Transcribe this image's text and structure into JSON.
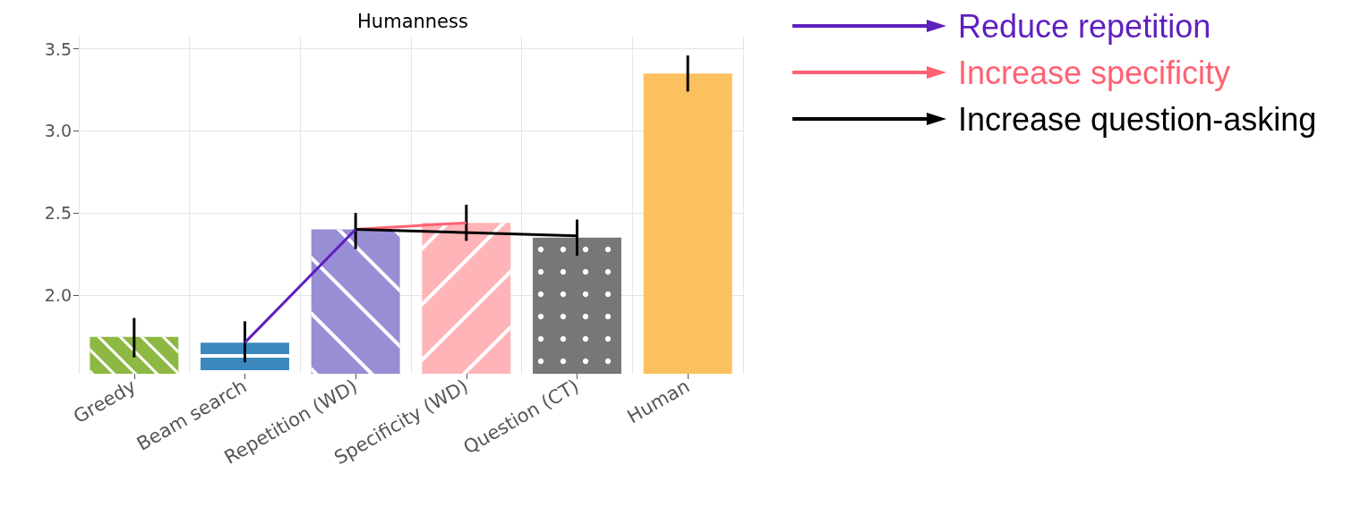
{
  "chart_data": {
    "type": "bar",
    "title": "Humanness",
    "categories": [
      "Greedy",
      "Beam search",
      "Repetition (WD)",
      "Specificity (WD)",
      "Question (CT)",
      "Human"
    ],
    "values": [
      1.745,
      1.71,
      2.4,
      2.44,
      2.35,
      3.35
    ],
    "colors": [
      "#8db843",
      "#3a88be",
      "#988ed5",
      "#ffb4b8",
      "#777777",
      "#fbc15e"
    ],
    "errors": [
      [
        1.62,
        1.86
      ],
      [
        1.59,
        1.84
      ],
      [
        2.28,
        2.5
      ],
      [
        2.33,
        2.55
      ],
      [
        2.24,
        2.46
      ],
      [
        3.24,
        3.46
      ]
    ],
    "series": [
      {
        "type": "line",
        "name": "Reduce repetition",
        "color": "#5e1fbe",
        "x": [
          "Beam search",
          "Repetition (WD)"
        ],
        "values": [
          1.71,
          2.4
        ]
      },
      {
        "type": "line",
        "name": "Increase specificity",
        "color": "#ff6272",
        "x": [
          "Repetition (WD)",
          "Specificity (WD)"
        ],
        "values": [
          2.4,
          2.44
        ]
      },
      {
        "type": "line",
        "name": "Increase question-asking",
        "color": "#000000",
        "x": [
          "Repetition (WD)",
          "Question (CT)"
        ],
        "values": [
          2.4,
          2.36
        ]
      }
    ],
    "ylim": [
      1.52,
      3.58
    ],
    "yticks": [
      {
        "value": 2,
        "label": "2.0"
      },
      {
        "value": 2.5,
        "label": "2.5"
      },
      {
        "value": 3,
        "label": "3.0"
      },
      {
        "value": 3.5,
        "label": "3.5"
      }
    ],
    "grid": true,
    "legend": "right",
    "marker": "none",
    "line_style": "solid"
  }
}
